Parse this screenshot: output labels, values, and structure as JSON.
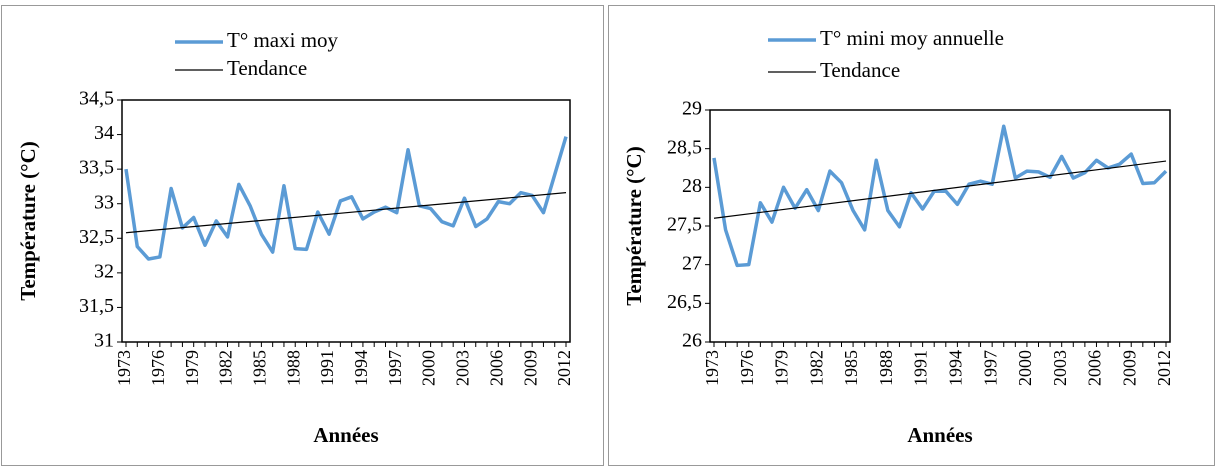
{
  "chart_data": [
    {
      "type": "line",
      "categories": [
        "1973",
        null,
        null,
        "1976",
        null,
        null,
        "1979",
        null,
        null,
        "1982",
        null,
        null,
        "1985",
        null,
        null,
        "1988",
        null,
        null,
        "1991",
        null,
        null,
        "1994",
        null,
        null,
        "1997",
        null,
        null,
        "2000",
        null,
        null,
        "2003",
        null,
        null,
        "2006",
        null,
        null,
        "2009",
        null,
        null,
        "2012"
      ],
      "series": [
        {
          "name": "T° maxi moy",
          "color": "#5b9bd5",
          "values": [
            33.5,
            32.38,
            32.2,
            32.23,
            33.22,
            32.65,
            32.8,
            32.4,
            32.75,
            32.52,
            33.28,
            32.97,
            32.56,
            32.3,
            33.26,
            32.35,
            32.34,
            32.88,
            32.56,
            33.04,
            33.1,
            32.78,
            32.88,
            32.95,
            32.87,
            33.78,
            32.97,
            32.93,
            32.74,
            32.68,
            33.08,
            32.67,
            32.78,
            33.03,
            33.0,
            33.16,
            33.12,
            32.87,
            33.42,
            33.97
          ]
        }
      ],
      "trend": {
        "name": "Tendance",
        "color": "#000000",
        "values": [
          32.58,
          33.16
        ]
      },
      "x_label": "Années",
      "y_label": "Température (°C)",
      "ylim": [
        31,
        34.5
      ],
      "yticks": [
        31,
        {
          "value": 31.5,
          "label": "31,5"
        },
        32,
        {
          "value": 32.5,
          "label": "32,5"
        },
        33,
        {
          "value": 33.5,
          "label": "33,5"
        },
        34,
        {
          "value": 34.5,
          "label": "34,5"
        }
      ]
    },
    {
      "type": "line",
      "categories": [
        "1973",
        null,
        null,
        "1976",
        null,
        null,
        "1979",
        null,
        null,
        "1982",
        null,
        null,
        "1985",
        null,
        null,
        "1988",
        null,
        null,
        "1991",
        null,
        null,
        "1994",
        null,
        null,
        "1997",
        null,
        null,
        "2000",
        null,
        null,
        "2003",
        null,
        null,
        "2006",
        null,
        null,
        "2009",
        null,
        null,
        "2012"
      ],
      "series": [
        {
          "name": "T° mini moy annuelle",
          "color": "#5b9bd5",
          "values": [
            28.38,
            27.45,
            26.99,
            27.0,
            27.8,
            27.55,
            28.0,
            27.73,
            27.97,
            27.7,
            28.21,
            28.06,
            27.7,
            27.45,
            28.35,
            27.7,
            27.49,
            27.93,
            27.72,
            27.95,
            27.95,
            27.78,
            28.04,
            28.08,
            28.04,
            28.79,
            28.12,
            28.21,
            28.2,
            28.13,
            28.4,
            28.12,
            28.19,
            28.35,
            28.25,
            28.3,
            28.43,
            28.05,
            28.06,
            28.21
          ]
        }
      ],
      "trend": {
        "name": "Tendance",
        "color": "#000000",
        "values": [
          27.6,
          28.34
        ]
      },
      "x_label": "Années",
      "y_label": "Température (°C)",
      "ylim": [
        26,
        29
      ],
      "yticks": [
        26,
        {
          "value": 26.5,
          "label": "26,5"
        },
        27,
        {
          "value": 27.5,
          "label": "27,5"
        },
        28,
        {
          "value": 28.5,
          "label": "28,5"
        },
        29
      ]
    }
  ]
}
